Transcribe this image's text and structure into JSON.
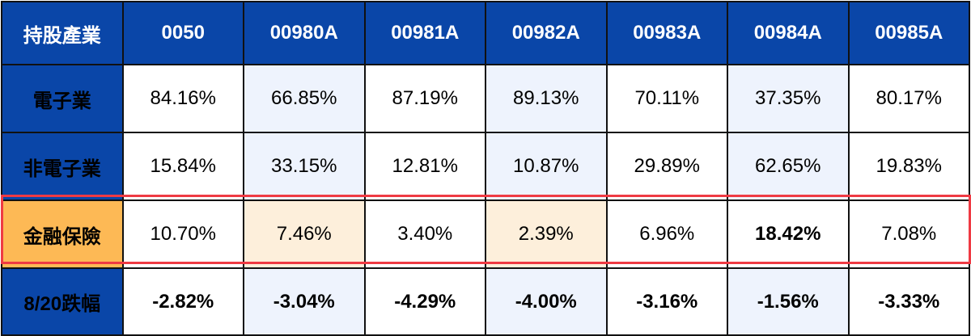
{
  "header": {
    "label": "持股產業",
    "columns": [
      "0050",
      "00980A",
      "00981A",
      "00982A",
      "00983A",
      "00984A",
      "00985A"
    ]
  },
  "rows": [
    {
      "label": "電子業",
      "values": [
        "84.16%",
        "66.85%",
        "87.19%",
        "89.13%",
        "70.11%",
        "37.35%",
        "80.17%"
      ]
    },
    {
      "label": "非電子業",
      "values": [
        "15.84%",
        "33.15%",
        "12.81%",
        "10.87%",
        "29.89%",
        "62.65%",
        "19.83%"
      ]
    },
    {
      "label": "金融保險",
      "values": [
        "10.70%",
        "7.46%",
        "3.40%",
        "2.39%",
        "6.96%",
        "18.42%",
        "7.08%"
      ]
    },
    {
      "label": "8/20跌幅",
      "values": [
        "-2.82%",
        "-3.04%",
        "-4.29%",
        "-4.00%",
        "-3.16%",
        "-1.56%",
        "-3.33%"
      ]
    }
  ],
  "colors": {
    "header_bg": "#0a46a8",
    "shade_blue": "#eef3fd",
    "shade_orange": "#fdefdb",
    "highlight_label_bg": "#fdb955",
    "highlight_border": "#ef3a43",
    "emphasis_text": "#f0282d"
  }
}
